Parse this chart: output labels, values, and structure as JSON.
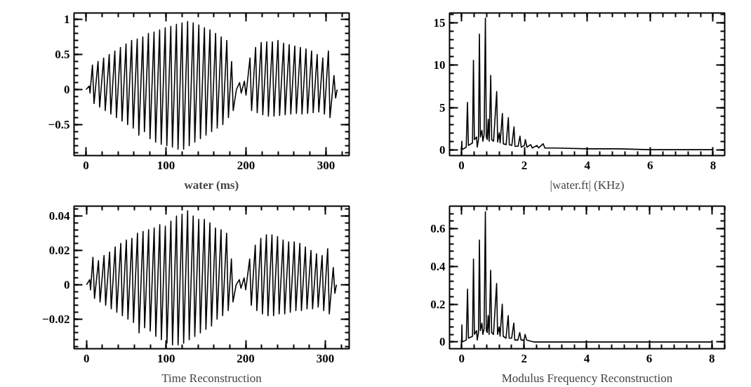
{
  "chart_data": [
    {
      "type": "line",
      "xlabel": "water (ms)",
      "xlim": [
        -15,
        329
      ],
      "ylim": [
        -0.94,
        1.09
      ],
      "xticks": [
        0,
        100,
        200,
        300
      ],
      "yticks": [
        {
          "value": -0.5,
          "label": "−0.5"
        },
        0,
        0.5,
        1
      ],
      "grid": false,
      "series": [
        {
          "color": "#000000",
          "x": [
            0,
            4,
            5,
            8,
            10,
            15,
            17,
            22,
            24,
            29,
            31,
            36,
            38,
            43,
            45,
            50,
            52,
            57,
            59,
            64,
            66,
            71,
            73,
            78,
            80,
            85,
            87,
            92,
            94,
            99,
            101,
            106,
            108,
            113,
            115,
            120,
            122,
            127,
            129,
            134,
            136,
            141,
            143,
            148,
            150,
            155,
            157,
            162,
            164,
            169,
            171,
            176,
            178,
            182,
            184,
            188,
            192,
            194,
            198,
            200,
            205,
            207,
            212,
            214,
            219,
            221,
            226,
            228,
            233,
            235,
            240,
            242,
            247,
            249,
            254,
            256,
            261,
            263,
            268,
            270,
            275,
            277,
            282,
            284,
            289,
            291,
            296,
            298,
            303,
            305,
            310,
            312,
            314
          ],
          "values": [
            0,
            0.05,
            -0.05,
            0.35,
            -0.2,
            0.4,
            -0.25,
            0.45,
            -0.3,
            0.5,
            -0.35,
            0.55,
            -0.4,
            0.6,
            -0.45,
            0.65,
            -0.5,
            0.7,
            -0.55,
            0.72,
            -0.65,
            0.75,
            -0.6,
            0.8,
            -0.7,
            0.82,
            -0.75,
            0.85,
            -0.78,
            0.88,
            -0.8,
            0.9,
            -0.82,
            0.93,
            -0.85,
            0.95,
            -0.85,
            0.97,
            -0.8,
            0.95,
            -0.75,
            0.92,
            -0.7,
            0.88,
            -0.65,
            0.85,
            -0.6,
            0.8,
            -0.55,
            0.75,
            -0.5,
            0.7,
            -0.4,
            0.4,
            -0.3,
            0,
            0.1,
            -0.05,
            0.12,
            -0.08,
            0.45,
            -0.3,
            0.6,
            -0.33,
            0.67,
            -0.36,
            0.68,
            -0.38,
            0.68,
            -0.38,
            0.7,
            -0.37,
            0.66,
            -0.36,
            0.64,
            -0.35,
            0.62,
            -0.34,
            0.6,
            -0.35,
            0.58,
            -0.34,
            0.55,
            -0.33,
            0.5,
            -0.32,
            0.45,
            -0.35,
            0.55,
            -0.4,
            0.2,
            -0.12,
            0
          ]
        }
      ]
    },
    {
      "type": "line",
      "xlabel": "|water.ft| (KHz)",
      "xlim": [
        -0.38,
        8.37
      ],
      "ylim": [
        -0.7,
        16.2
      ],
      "xticks": [
        0,
        2,
        4,
        6,
        8
      ],
      "yticks": [
        0,
        5,
        10,
        15
      ],
      "grid": false,
      "series": [
        {
          "color": "#000000",
          "x": [
            0,
            0.01,
            0.02,
            0.15,
            0.19,
            0.22,
            0.35,
            0.38,
            0.41,
            0.48,
            0.5,
            0.54,
            0.57,
            0.6,
            0.65,
            0.68,
            0.72,
            0.76,
            0.79,
            0.82,
            0.85,
            0.88,
            0.93,
            0.96,
            1.02,
            1.12,
            1.15,
            1.2,
            1.23,
            1.3,
            1.33,
            1.42,
            1.49,
            1.52,
            1.6,
            1.67,
            1.7,
            1.8,
            1.86,
            1.9,
            2.0,
            2.03,
            2.08,
            2.2,
            2.25,
            2.4,
            2.45,
            2.6,
            2.65,
            3.0,
            4.0,
            5.0,
            6.0,
            7.0,
            8.0
          ],
          "values": [
            0,
            1.0,
            0,
            0.3,
            5.6,
            0.5,
            0.8,
            10.6,
            1.2,
            1.5,
            0.3,
            1.2,
            13.7,
            1.5,
            2.3,
            1.0,
            1.8,
            15.6,
            1.5,
            1.2,
            3.6,
            1.0,
            8.8,
            1.2,
            1.0,
            6.9,
            0.9,
            2.0,
            0.8,
            4.3,
            0.7,
            0.6,
            3.8,
            0.6,
            0.5,
            2.7,
            0.4,
            0.4,
            1.6,
            0.3,
            0.5,
            1.2,
            0.3,
            0.6,
            0.2,
            0.5,
            0.2,
            0.7,
            0.2,
            0.2,
            0.1,
            0.1,
            0,
            0,
            0
          ]
        }
      ]
    },
    {
      "type": "line",
      "xlabel": "Time Reconstruction",
      "xlim": [
        -15.7,
        330
      ],
      "ylim": [
        -0.0372,
        0.0457
      ],
      "xticks": [
        0,
        100,
        200,
        300
      ],
      "yticks": [
        {
          "value": -0.02,
          "label": "−0.02"
        },
        0,
        0.02,
        0.04
      ],
      "grid": false,
      "series": [
        {
          "color": "#000000",
          "x": [
            0,
            4,
            5,
            8,
            10,
            15,
            17,
            22,
            24,
            29,
            31,
            36,
            38,
            43,
            45,
            50,
            52,
            57,
            59,
            64,
            66,
            71,
            73,
            78,
            80,
            85,
            87,
            92,
            94,
            99,
            101,
            106,
            108,
            113,
            115,
            120,
            122,
            127,
            129,
            134,
            136,
            141,
            143,
            148,
            150,
            155,
            157,
            162,
            164,
            169,
            171,
            176,
            178,
            182,
            184,
            188,
            192,
            194,
            198,
            200,
            205,
            207,
            212,
            214,
            219,
            221,
            226,
            228,
            233,
            235,
            240,
            242,
            247,
            249,
            254,
            256,
            261,
            263,
            268,
            270,
            275,
            277,
            282,
            284,
            289,
            291,
            296,
            298,
            303,
            305,
            310,
            312,
            314
          ],
          "values": [
            0,
            0.003,
            -0.003,
            0.016,
            -0.008,
            0.014,
            -0.01,
            0.017,
            -0.012,
            0.019,
            -0.014,
            0.022,
            -0.016,
            0.024,
            -0.018,
            0.026,
            -0.02,
            0.027,
            -0.022,
            0.03,
            -0.028,
            0.031,
            -0.025,
            0.032,
            -0.027,
            0.033,
            -0.03,
            0.035,
            -0.032,
            0.034,
            -0.034,
            0.037,
            -0.035,
            0.04,
            -0.035,
            0.041,
            -0.034,
            0.043,
            -0.032,
            0.04,
            -0.03,
            0.038,
            -0.028,
            0.038,
            -0.026,
            0.036,
            -0.024,
            0.033,
            -0.02,
            0.032,
            -0.018,
            0.03,
            -0.015,
            0.015,
            -0.01,
            0,
            0.003,
            -0.002,
            0.004,
            -0.003,
            0.015,
            -0.012,
            0.023,
            -0.015,
            0.027,
            -0.017,
            0.029,
            -0.018,
            0.029,
            -0.018,
            0.028,
            -0.017,
            0.026,
            -0.017,
            0.025,
            -0.016,
            0.025,
            -0.015,
            0.024,
            -0.015,
            0.022,
            -0.014,
            0.02,
            -0.014,
            0.018,
            -0.013,
            0.017,
            -0.015,
            0.021,
            -0.017,
            0.01,
            -0.005,
            0
          ]
        }
      ]
    },
    {
      "type": "line",
      "xlabel": "Modulus Frequency Reconstruction",
      "xlim": [
        -0.385,
        8.41
      ],
      "ylim": [
        -0.036,
        0.72
      ],
      "xticks": [
        0,
        2,
        4,
        6,
        8
      ],
      "yticks": [
        0,
        0.2,
        0.4,
        0.6
      ],
      "grid": false,
      "series": [
        {
          "color": "#000000",
          "x": [
            0,
            0.01,
            0.02,
            0.15,
            0.19,
            0.22,
            0.35,
            0.38,
            0.41,
            0.48,
            0.5,
            0.54,
            0.57,
            0.6,
            0.65,
            0.68,
            0.72,
            0.76,
            0.79,
            0.82,
            0.85,
            0.88,
            0.93,
            0.96,
            1.02,
            1.12,
            1.15,
            1.2,
            1.23,
            1.3,
            1.33,
            1.42,
            1.49,
            1.52,
            1.6,
            1.67,
            1.7,
            1.8,
            1.86,
            1.9,
            2.0,
            2.03,
            2.08,
            2.3,
            3.0,
            4.0,
            5.0,
            6.0,
            7.0,
            8.0
          ],
          "values": [
            0,
            0.09,
            0,
            0.01,
            0.28,
            0.02,
            0.03,
            0.44,
            0.04,
            0.06,
            0.01,
            0.05,
            0.54,
            0.06,
            0.1,
            0.04,
            0.07,
            0.69,
            0.06,
            0.05,
            0.14,
            0.04,
            0.38,
            0.05,
            0.04,
            0.31,
            0.04,
            0.08,
            0.03,
            0.2,
            0.03,
            0.02,
            0.14,
            0.02,
            0.02,
            0.1,
            0.01,
            0.01,
            0.05,
            0.01,
            0.01,
            0.04,
            0.01,
            0,
            0,
            0,
            0,
            0,
            0,
            0
          ]
        }
      ]
    }
  ]
}
